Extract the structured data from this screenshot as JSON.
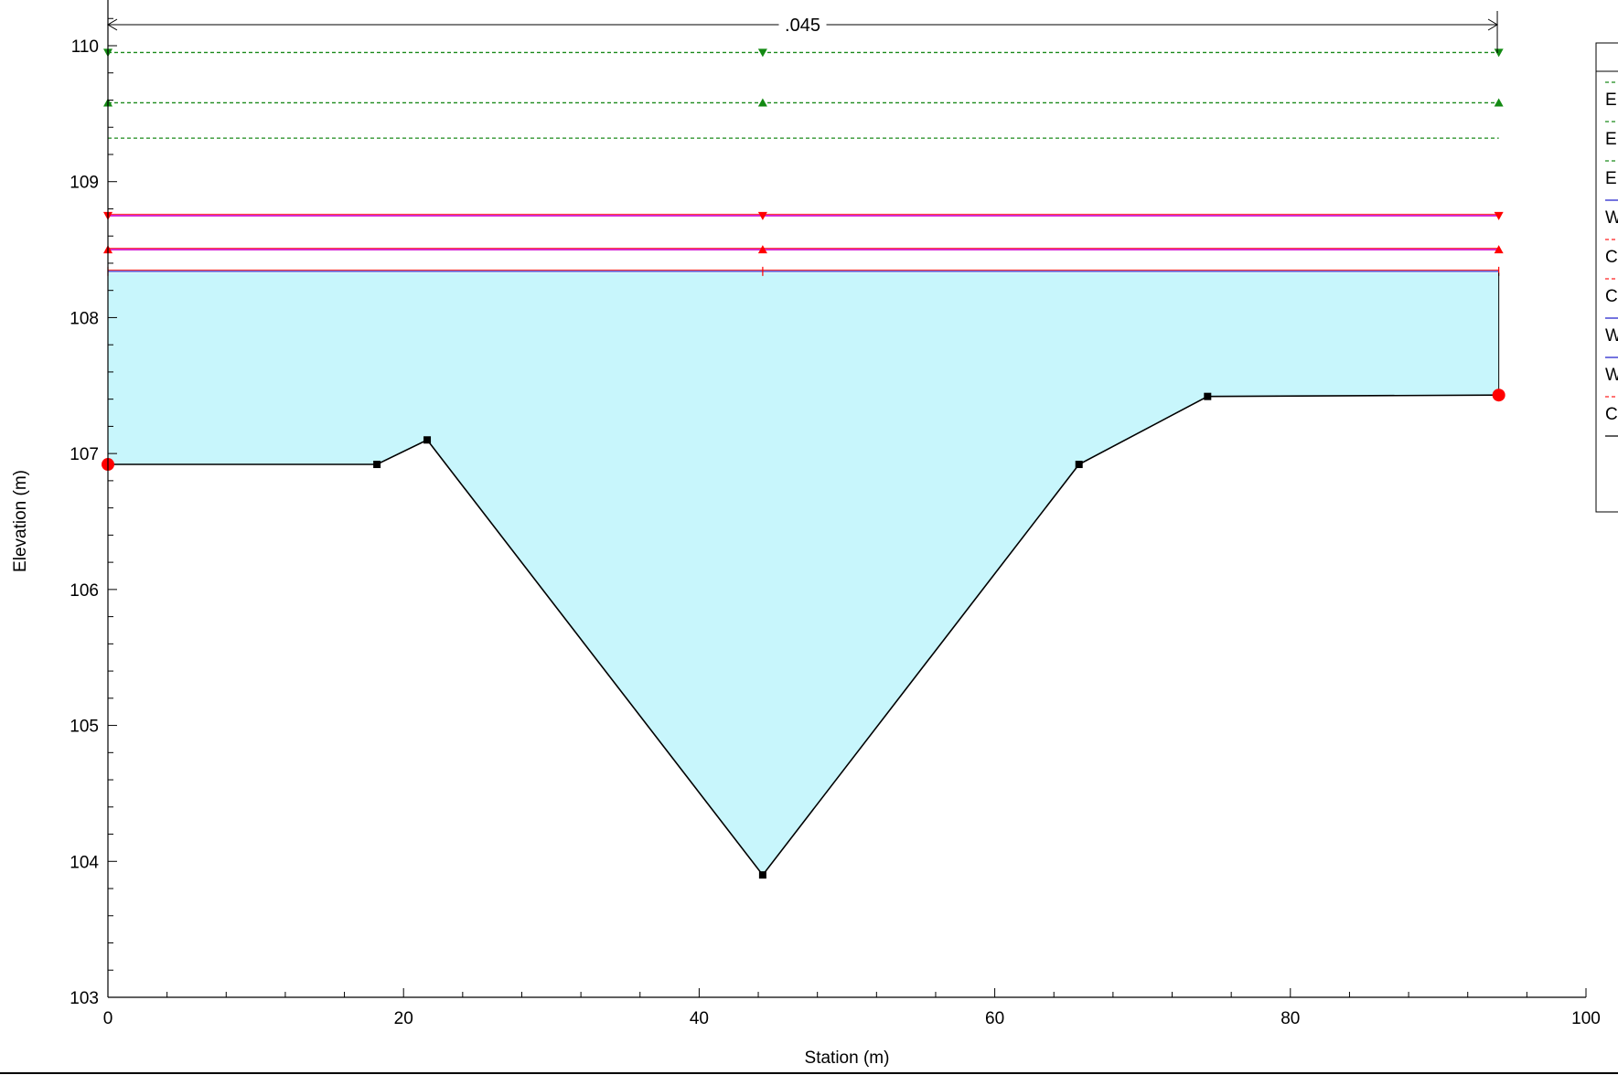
{
  "chart_data": {
    "type": "area",
    "title": "",
    "xlabel": "Station (m)",
    "ylabel": "Elevation (m)",
    "xlim": [
      0,
      100
    ],
    "ylim": [
      103,
      110
    ],
    "x_ticks": [
      0,
      20,
      40,
      60,
      80,
      100
    ],
    "y_ticks": [
      103,
      104,
      105,
      106,
      107,
      108,
      109,
      110
    ],
    "x_minor_step": 4,
    "y_minor_step": 0.2,
    "grid": false,
    "manning_n": {
      "label": ".045",
      "from": 0,
      "to": 94
    },
    "ground": {
      "name": "Ground",
      "color": "#000000",
      "points": [
        [
          0,
          106.92
        ],
        [
          18.2,
          106.92
        ],
        [
          21.6,
          107.1
        ],
        [
          44.3,
          103.9
        ],
        [
          65.7,
          106.92
        ],
        [
          74.4,
          107.42
        ],
        [
          94.1,
          107.43
        ]
      ]
    },
    "bank_stations": [
      [
        0,
        106.92
      ],
      [
        94.1,
        107.43
      ]
    ],
    "water_fill": {
      "color": "#c8f6fc",
      "elevation": 108.33
    },
    "levels": [
      {
        "legend": "E",
        "elevation": 109.95,
        "color": "#1a8a1a",
        "dash": true,
        "marker": "triangle-down"
      },
      {
        "legend": "E",
        "elevation": 109.58,
        "color": "#1a8a1a",
        "dash": true,
        "marker": "triangle-up"
      },
      {
        "legend": "E",
        "elevation": 109.32,
        "color": "#1a8a1a",
        "dash": true,
        "marker": "none"
      },
      {
        "legend": "W",
        "elevation": 108.75,
        "color": "#cc00cc",
        "dash": false,
        "marker": "triangle-down-red"
      },
      {
        "legend": "C",
        "elevation": 108.5,
        "color": "#cc00cc",
        "dash": false,
        "marker": "triangle-up-red"
      },
      {
        "legend": "C",
        "elevation": 108.34,
        "color": "#5050d0",
        "dash": false,
        "marker": "plus-red"
      }
    ],
    "legend": {
      "position": "right",
      "entries": [
        {
          "label": "E",
          "color": "#1a8a1a",
          "dash": true
        },
        {
          "label": "E",
          "color": "#1a8a1a",
          "dash": true
        },
        {
          "label": "E",
          "color": "#1a8a1a",
          "dash": true
        },
        {
          "label": "W",
          "color": "#2020cc",
          "dash": false
        },
        {
          "label": "C",
          "color": "#ff2020",
          "dash": true
        },
        {
          "label": "C",
          "color": "#ff2020",
          "dash": true
        },
        {
          "label": "W",
          "color": "#2020cc",
          "dash": false
        },
        {
          "label": "W",
          "color": "#2020cc",
          "dash": false
        },
        {
          "label": "C",
          "color": "#ff2020",
          "dash": true
        },
        {
          "label": "",
          "color": "#000000",
          "dash": false
        }
      ]
    }
  }
}
